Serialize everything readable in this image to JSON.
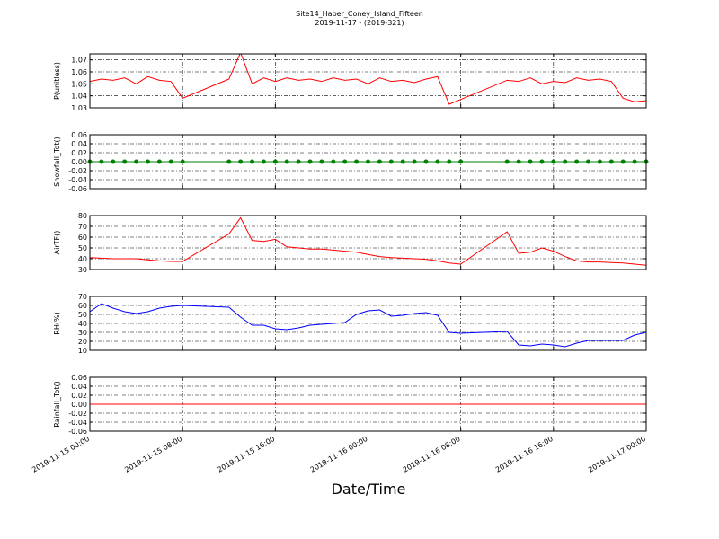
{
  "chart_data": [
    {
      "type": "line",
      "title": "Site14_Haber_Coney_Island_Fifteen",
      "subtitle": "2019-11-17 - (2019-321)",
      "y_label": "P(unitless)",
      "x": [
        "2019-11-15 00:00",
        "2019-11-15 01:00",
        "2019-11-15 02:00",
        "2019-11-15 03:00",
        "2019-11-15 04:00",
        "2019-11-15 05:00",
        "2019-11-15 06:00",
        "2019-11-15 07:00",
        "2019-11-15 08:00",
        "2019-11-15 12:00",
        "2019-11-15 13:00",
        "2019-11-15 14:00",
        "2019-11-15 15:00",
        "2019-11-15 16:00",
        "2019-11-15 17:00",
        "2019-11-15 18:00",
        "2019-11-15 19:00",
        "2019-11-15 20:00",
        "2019-11-15 21:00",
        "2019-11-15 22:00",
        "2019-11-15 23:00",
        "2019-11-16 00:00",
        "2019-11-16 01:00",
        "2019-11-16 02:00",
        "2019-11-16 03:00",
        "2019-11-16 04:00",
        "2019-11-16 05:00",
        "2019-11-16 06:00",
        "2019-11-16 07:00",
        "2019-11-16 08:00",
        "2019-11-16 12:00",
        "2019-11-16 13:00",
        "2019-11-16 14:00",
        "2019-11-16 15:00",
        "2019-11-16 16:00",
        "2019-11-16 17:00",
        "2019-11-16 18:00",
        "2019-11-16 19:00",
        "2019-11-16 20:00",
        "2019-11-16 21:00",
        "2019-11-16 22:00",
        "2019-11-16 23:00",
        "2019-11-17 00:00"
      ],
      "series": [
        {
          "color": "#ff0000",
          "values": [
            1.052,
            1.054,
            1.053,
            1.055,
            1.05,
            1.056,
            1.053,
            1.052,
            1.038,
            1.054,
            1.076,
            1.05,
            1.055,
            1.052,
            1.055,
            1.053,
            1.054,
            1.052,
            1.055,
            1.053,
            1.054,
            1.05,
            1.055,
            1.052,
            1.053,
            1.051,
            1.054,
            1.056,
            1.033,
            1.037,
            1.053,
            1.052,
            1.055,
            1.05,
            1.052,
            1.051,
            1.055,
            1.053,
            1.054,
            1.052,
            1.038,
            1.035,
            1.036
          ]
        }
      ],
      "ylim": [
        1.03,
        1.075
      ],
      "yticks": [
        1.03,
        1.04,
        1.05,
        1.06,
        1.07
      ],
      "xlim": [
        "2019-11-15 00:00",
        "2019-11-17 00:00"
      ],
      "xticks": [
        "2019-11-15 00:00",
        "2019-11-15 08:00",
        "2019-11-15 16:00",
        "2019-11-16 00:00",
        "2019-11-16 08:00",
        "2019-11-16 16:00",
        "2019-11-17 00:00"
      ],
      "grid": true
    },
    {
      "type": "line",
      "y_label": "Snowfall_Tot()",
      "x": [
        "2019-11-15 00:00",
        "2019-11-15 01:00",
        "2019-11-15 02:00",
        "2019-11-15 03:00",
        "2019-11-15 04:00",
        "2019-11-15 05:00",
        "2019-11-15 06:00",
        "2019-11-15 07:00",
        "2019-11-15 08:00",
        "2019-11-15 12:00",
        "2019-11-15 13:00",
        "2019-11-15 14:00",
        "2019-11-15 15:00",
        "2019-11-15 16:00",
        "2019-11-15 17:00",
        "2019-11-15 18:00",
        "2019-11-15 19:00",
        "2019-11-15 20:00",
        "2019-11-15 21:00",
        "2019-11-15 22:00",
        "2019-11-15 23:00",
        "2019-11-16 00:00",
        "2019-11-16 01:00",
        "2019-11-16 02:00",
        "2019-11-16 03:00",
        "2019-11-16 04:00",
        "2019-11-16 05:00",
        "2019-11-16 06:00",
        "2019-11-16 07:00",
        "2019-11-16 08:00",
        "2019-11-16 12:00",
        "2019-11-16 13:00",
        "2019-11-16 14:00",
        "2019-11-16 15:00",
        "2019-11-16 16:00",
        "2019-11-16 17:00",
        "2019-11-16 18:00",
        "2019-11-16 19:00",
        "2019-11-16 20:00",
        "2019-11-16 21:00",
        "2019-11-16 22:00",
        "2019-11-16 23:00",
        "2019-11-17 00:00"
      ],
      "series": [
        {
          "color": "#008000",
          "markers": true,
          "values": [
            0,
            0,
            0,
            0,
            0,
            0,
            0,
            0,
            0,
            0,
            0,
            0,
            0,
            0,
            0,
            0,
            0,
            0,
            0,
            0,
            0,
            0,
            0,
            0,
            0,
            0,
            0,
            0,
            0,
            0,
            0,
            0,
            0,
            0,
            0,
            0,
            0,
            0,
            0,
            0,
            0,
            0,
            0
          ]
        }
      ],
      "ylim": [
        -0.06,
        0.06
      ],
      "yticks": [
        -0.06,
        -0.04,
        -0.02,
        {
          "value": 0,
          "label": "0.00"
        },
        0.02,
        0.04,
        0.06
      ],
      "xlim": [
        "2019-11-15 00:00",
        "2019-11-17 00:00"
      ],
      "xticks": [
        "2019-11-15 00:00",
        "2019-11-15 08:00",
        "2019-11-15 16:00",
        "2019-11-16 00:00",
        "2019-11-16 08:00",
        "2019-11-16 16:00",
        "2019-11-17 00:00"
      ],
      "grid": true
    },
    {
      "type": "line",
      "y_label": "AirTF()",
      "x": [
        "2019-11-15 00:00",
        "2019-11-15 01:00",
        "2019-11-15 02:00",
        "2019-11-15 03:00",
        "2019-11-15 04:00",
        "2019-11-15 05:00",
        "2019-11-15 06:00",
        "2019-11-15 07:00",
        "2019-11-15 08:00",
        "2019-11-15 12:00",
        "2019-11-15 13:00",
        "2019-11-15 14:00",
        "2019-11-15 15:00",
        "2019-11-15 16:00",
        "2019-11-15 17:00",
        "2019-11-15 18:00",
        "2019-11-15 19:00",
        "2019-11-15 20:00",
        "2019-11-15 21:00",
        "2019-11-15 22:00",
        "2019-11-15 23:00",
        "2019-11-16 00:00",
        "2019-11-16 01:00",
        "2019-11-16 02:00",
        "2019-11-16 03:00",
        "2019-11-16 04:00",
        "2019-11-16 05:00",
        "2019-11-16 06:00",
        "2019-11-16 07:00",
        "2019-11-16 08:00",
        "2019-11-16 12:00",
        "2019-11-16 13:00",
        "2019-11-16 14:00",
        "2019-11-16 15:00",
        "2019-11-16 16:00",
        "2019-11-16 17:00",
        "2019-11-16 18:00",
        "2019-11-16 19:00",
        "2019-11-16 20:00",
        "2019-11-16 21:00",
        "2019-11-16 22:00",
        "2019-11-16 23:00",
        "2019-11-17 00:00"
      ],
      "series": [
        {
          "color": "#ff0000",
          "values": [
            41,
            40.5,
            40,
            40,
            40,
            39,
            38,
            37.5,
            37.5,
            63,
            78,
            57,
            56,
            58,
            51,
            50,
            49,
            49,
            48,
            47,
            46,
            44,
            42,
            41,
            40.5,
            40,
            39.5,
            38,
            36,
            35,
            65,
            45,
            46,
            50,
            47,
            42,
            38,
            37,
            37,
            36.5,
            36,
            35,
            34
          ]
        }
      ],
      "ylim": [
        30,
        80
      ],
      "yticks": [
        30,
        40,
        50,
        60,
        70,
        80
      ],
      "xlim": [
        "2019-11-15 00:00",
        "2019-11-17 00:00"
      ],
      "xticks": [
        "2019-11-15 00:00",
        "2019-11-15 08:00",
        "2019-11-15 16:00",
        "2019-11-16 00:00",
        "2019-11-16 08:00",
        "2019-11-16 16:00",
        "2019-11-17 00:00"
      ],
      "grid": true
    },
    {
      "type": "line",
      "y_label": "RH(%)",
      "x": [
        "2019-11-15 00:00",
        "2019-11-15 01:00",
        "2019-11-15 02:00",
        "2019-11-15 03:00",
        "2019-11-15 04:00",
        "2019-11-15 05:00",
        "2019-11-15 06:00",
        "2019-11-15 07:00",
        "2019-11-15 08:00",
        "2019-11-15 12:00",
        "2019-11-15 13:00",
        "2019-11-15 14:00",
        "2019-11-15 15:00",
        "2019-11-15 16:00",
        "2019-11-15 17:00",
        "2019-11-15 18:00",
        "2019-11-15 19:00",
        "2019-11-15 20:00",
        "2019-11-15 21:00",
        "2019-11-15 22:00",
        "2019-11-15 23:00",
        "2019-11-16 00:00",
        "2019-11-16 01:00",
        "2019-11-16 02:00",
        "2019-11-16 03:00",
        "2019-11-16 04:00",
        "2019-11-16 05:00",
        "2019-11-16 06:00",
        "2019-11-16 07:00",
        "2019-11-16 08:00",
        "2019-11-16 12:00",
        "2019-11-16 13:00",
        "2019-11-16 14:00",
        "2019-11-16 15:00",
        "2019-11-16 16:00",
        "2019-11-16 17:00",
        "2019-11-16 18:00",
        "2019-11-16 19:00",
        "2019-11-16 20:00",
        "2019-11-16 21:00",
        "2019-11-16 22:00",
        "2019-11-16 23:00",
        "2019-11-17 00:00"
      ],
      "series": [
        {
          "color": "#0000ff",
          "values": [
            53,
            62,
            57,
            53,
            51,
            53,
            57,
            59,
            60,
            58,
            47,
            38,
            38,
            34,
            33,
            35,
            38,
            39,
            40,
            41,
            50,
            54,
            55,
            48,
            49,
            51,
            52,
            49,
            30,
            29,
            31,
            16,
            15,
            17,
            16,
            14,
            18,
            21,
            21,
            21,
            21,
            27,
            30
          ]
        }
      ],
      "ylim": [
        10,
        70
      ],
      "yticks": [
        10,
        20,
        30,
        40,
        50,
        60,
        70
      ],
      "xlim": [
        "2019-11-15 00:00",
        "2019-11-17 00:00"
      ],
      "xticks": [
        "2019-11-15 00:00",
        "2019-11-15 08:00",
        "2019-11-15 16:00",
        "2019-11-16 00:00",
        "2019-11-16 08:00",
        "2019-11-16 16:00",
        "2019-11-17 00:00"
      ],
      "grid": true
    },
    {
      "type": "line",
      "y_label": "Rainfall_Tot()",
      "x_label": "Date/Time",
      "x": [
        "2019-11-15 00:00",
        "2019-11-15 01:00",
        "2019-11-15 02:00",
        "2019-11-15 03:00",
        "2019-11-15 04:00",
        "2019-11-15 05:00",
        "2019-11-15 06:00",
        "2019-11-15 07:00",
        "2019-11-15 08:00",
        "2019-11-15 12:00",
        "2019-11-15 13:00",
        "2019-11-15 14:00",
        "2019-11-15 15:00",
        "2019-11-15 16:00",
        "2019-11-15 17:00",
        "2019-11-15 18:00",
        "2019-11-15 19:00",
        "2019-11-15 20:00",
        "2019-11-15 21:00",
        "2019-11-15 22:00",
        "2019-11-15 23:00",
        "2019-11-16 00:00",
        "2019-11-16 01:00",
        "2019-11-16 02:00",
        "2019-11-16 03:00",
        "2019-11-16 04:00",
        "2019-11-16 05:00",
        "2019-11-16 06:00",
        "2019-11-16 07:00",
        "2019-11-16 08:00",
        "2019-11-16 12:00",
        "2019-11-16 13:00",
        "2019-11-16 14:00",
        "2019-11-16 15:00",
        "2019-11-16 16:00",
        "2019-11-16 17:00",
        "2019-11-16 18:00",
        "2019-11-16 19:00",
        "2019-11-16 20:00",
        "2019-11-16 21:00",
        "2019-11-16 22:00",
        "2019-11-16 23:00",
        "2019-11-17 00:00"
      ],
      "series": [
        {
          "color": "#ff0000",
          "values": [
            0,
            0,
            0,
            0,
            0,
            0,
            0,
            0,
            0,
            0,
            0,
            0,
            0,
            0,
            0,
            0,
            0,
            0,
            0,
            0,
            0,
            0,
            0,
            0,
            0,
            0,
            0,
            0,
            0,
            0,
            0,
            0,
            0,
            0,
            0,
            0,
            0,
            0,
            0,
            0,
            0,
            0,
            0
          ]
        }
      ],
      "ylim": [
        -0.06,
        0.06
      ],
      "yticks": [
        -0.06,
        -0.04,
        -0.02,
        {
          "value": 0,
          "label": "0.00"
        },
        0.02,
        0.04,
        0.06
      ],
      "xlim": [
        "2019-11-15 00:00",
        "2019-11-17 00:00"
      ],
      "xticks": [
        "2019-11-15 00:00",
        "2019-11-15 08:00",
        "2019-11-15 16:00",
        "2019-11-16 00:00",
        "2019-11-16 08:00",
        "2019-11-16 16:00",
        "2019-11-17 00:00"
      ],
      "grid": true
    }
  ]
}
